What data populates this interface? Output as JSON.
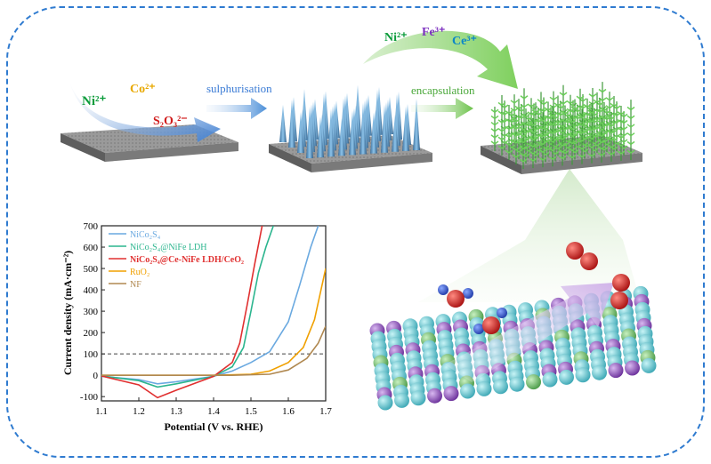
{
  "ions_left": {
    "ni": "Ni²⁺",
    "co": "Co²⁺",
    "s2o3": "S₂O₃²⁻"
  },
  "ions_top": {
    "ni": "Ni²⁺",
    "fe": "Fe³⁺",
    "ce": "Ce³⁺"
  },
  "steps": {
    "sulphurisation": "sulphurisation",
    "encapsulation": "encapsulation"
  },
  "colors": {
    "ni": "#0a9b3a",
    "co": "#e8a800",
    "s2o3": "#d01c1c",
    "fe": "#7b2fbf",
    "ce": "#0a86c8",
    "step_text": "#3a7bd5",
    "frame": "#2f7bd0"
  },
  "chart_data": {
    "type": "line",
    "xlabel": "Potential (V vs. RHE)",
    "ylabel": "Current density (mA·cm⁻²)",
    "xlim": [
      1.1,
      1.7
    ],
    "ylim": [
      -120,
      700
    ],
    "xticks": [
      "1.1",
      "1.2",
      "1.3",
      "1.4",
      "1.5",
      "1.6",
      "1.7"
    ],
    "yticks": [
      "-100",
      "0",
      "100",
      "200",
      "300",
      "400",
      "500",
      "600",
      "700"
    ],
    "reference_line": 100,
    "series": [
      {
        "name": "NiCo₂S₄",
        "color": "#6aa9e0",
        "points": [
          [
            1.1,
            -5
          ],
          [
            1.2,
            -20
          ],
          [
            1.25,
            -40
          ],
          [
            1.3,
            -30
          ],
          [
            1.4,
            -5
          ],
          [
            1.45,
            20
          ],
          [
            1.5,
            60
          ],
          [
            1.55,
            110
          ],
          [
            1.6,
            250
          ],
          [
            1.63,
            420
          ],
          [
            1.66,
            600
          ],
          [
            1.68,
            700
          ]
        ]
      },
      {
        "name": "NiCo₂S₄@NiFe LDH",
        "color": "#2bb58e",
        "points": [
          [
            1.1,
            -3
          ],
          [
            1.2,
            -25
          ],
          [
            1.25,
            -55
          ],
          [
            1.3,
            -40
          ],
          [
            1.4,
            -5
          ],
          [
            1.45,
            40
          ],
          [
            1.48,
            130
          ],
          [
            1.5,
            300
          ],
          [
            1.52,
            480
          ],
          [
            1.54,
            600
          ],
          [
            1.56,
            700
          ]
        ]
      },
      {
        "name": "NiCo₂S₄@Ce-NiFe LDH/CeO₂",
        "color": "#e03030",
        "points": [
          [
            1.1,
            -3
          ],
          [
            1.2,
            -45
          ],
          [
            1.25,
            -105
          ],
          [
            1.3,
            -70
          ],
          [
            1.4,
            -5
          ],
          [
            1.45,
            60
          ],
          [
            1.47,
            150
          ],
          [
            1.49,
            330
          ],
          [
            1.51,
            520
          ],
          [
            1.53,
            700
          ]
        ]
      },
      {
        "name": "RuO₂",
        "color": "#f0a000",
        "points": [
          [
            1.1,
            0
          ],
          [
            1.4,
            0
          ],
          [
            1.5,
            5
          ],
          [
            1.55,
            20
          ],
          [
            1.6,
            60
          ],
          [
            1.64,
            130
          ],
          [
            1.67,
            260
          ],
          [
            1.7,
            500
          ]
        ]
      },
      {
        "name": "NF",
        "color": "#b08850",
        "points": [
          [
            1.1,
            0
          ],
          [
            1.45,
            0
          ],
          [
            1.55,
            5
          ],
          [
            1.6,
            25
          ],
          [
            1.65,
            80
          ],
          [
            1.68,
            150
          ],
          [
            1.7,
            230
          ]
        ]
      }
    ]
  }
}
